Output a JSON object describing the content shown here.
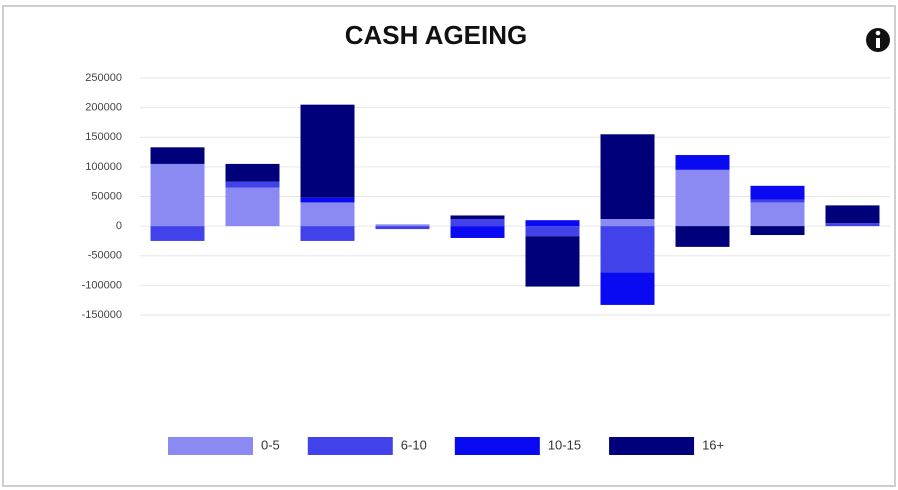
{
  "chart_data": {
    "type": "bar",
    "stacked": true,
    "title": "CASH AGEING",
    "categories": [
      null,
      null,
      null,
      null,
      null,
      null,
      null,
      null,
      null,
      null
    ],
    "series": [
      {
        "name": "0-5",
        "color": "#8a8af2",
        "values": [
          105000,
          65000,
          40000,
          3000,
          0,
          0,
          12000,
          95000,
          40000,
          0
        ]
      },
      {
        "name": "6-10",
        "color": "#4242ea",
        "values": [
          -25000,
          10000,
          -25000,
          -5000,
          12000,
          -17000,
          -78000,
          0,
          5000,
          5000
        ]
      },
      {
        "name": "10-15",
        "color": "#0a0af2",
        "values": [
          0,
          0,
          8000,
          0,
          -20000,
          10000,
          -55000,
          25000,
          23000,
          0
        ]
      },
      {
        "name": "16+",
        "color": "#00007a",
        "values": [
          28000,
          30000,
          157000,
          0,
          6000,
          -85000,
          143000,
          -35000,
          -15000,
          30000
        ]
      }
    ],
    "ylim": [
      -150000,
      250000
    ],
    "yticks": [
      -150000,
      -100000,
      -50000,
      0,
      50000,
      100000,
      150000,
      200000,
      250000
    ],
    "grid": true,
    "legend": "bottom"
  }
}
